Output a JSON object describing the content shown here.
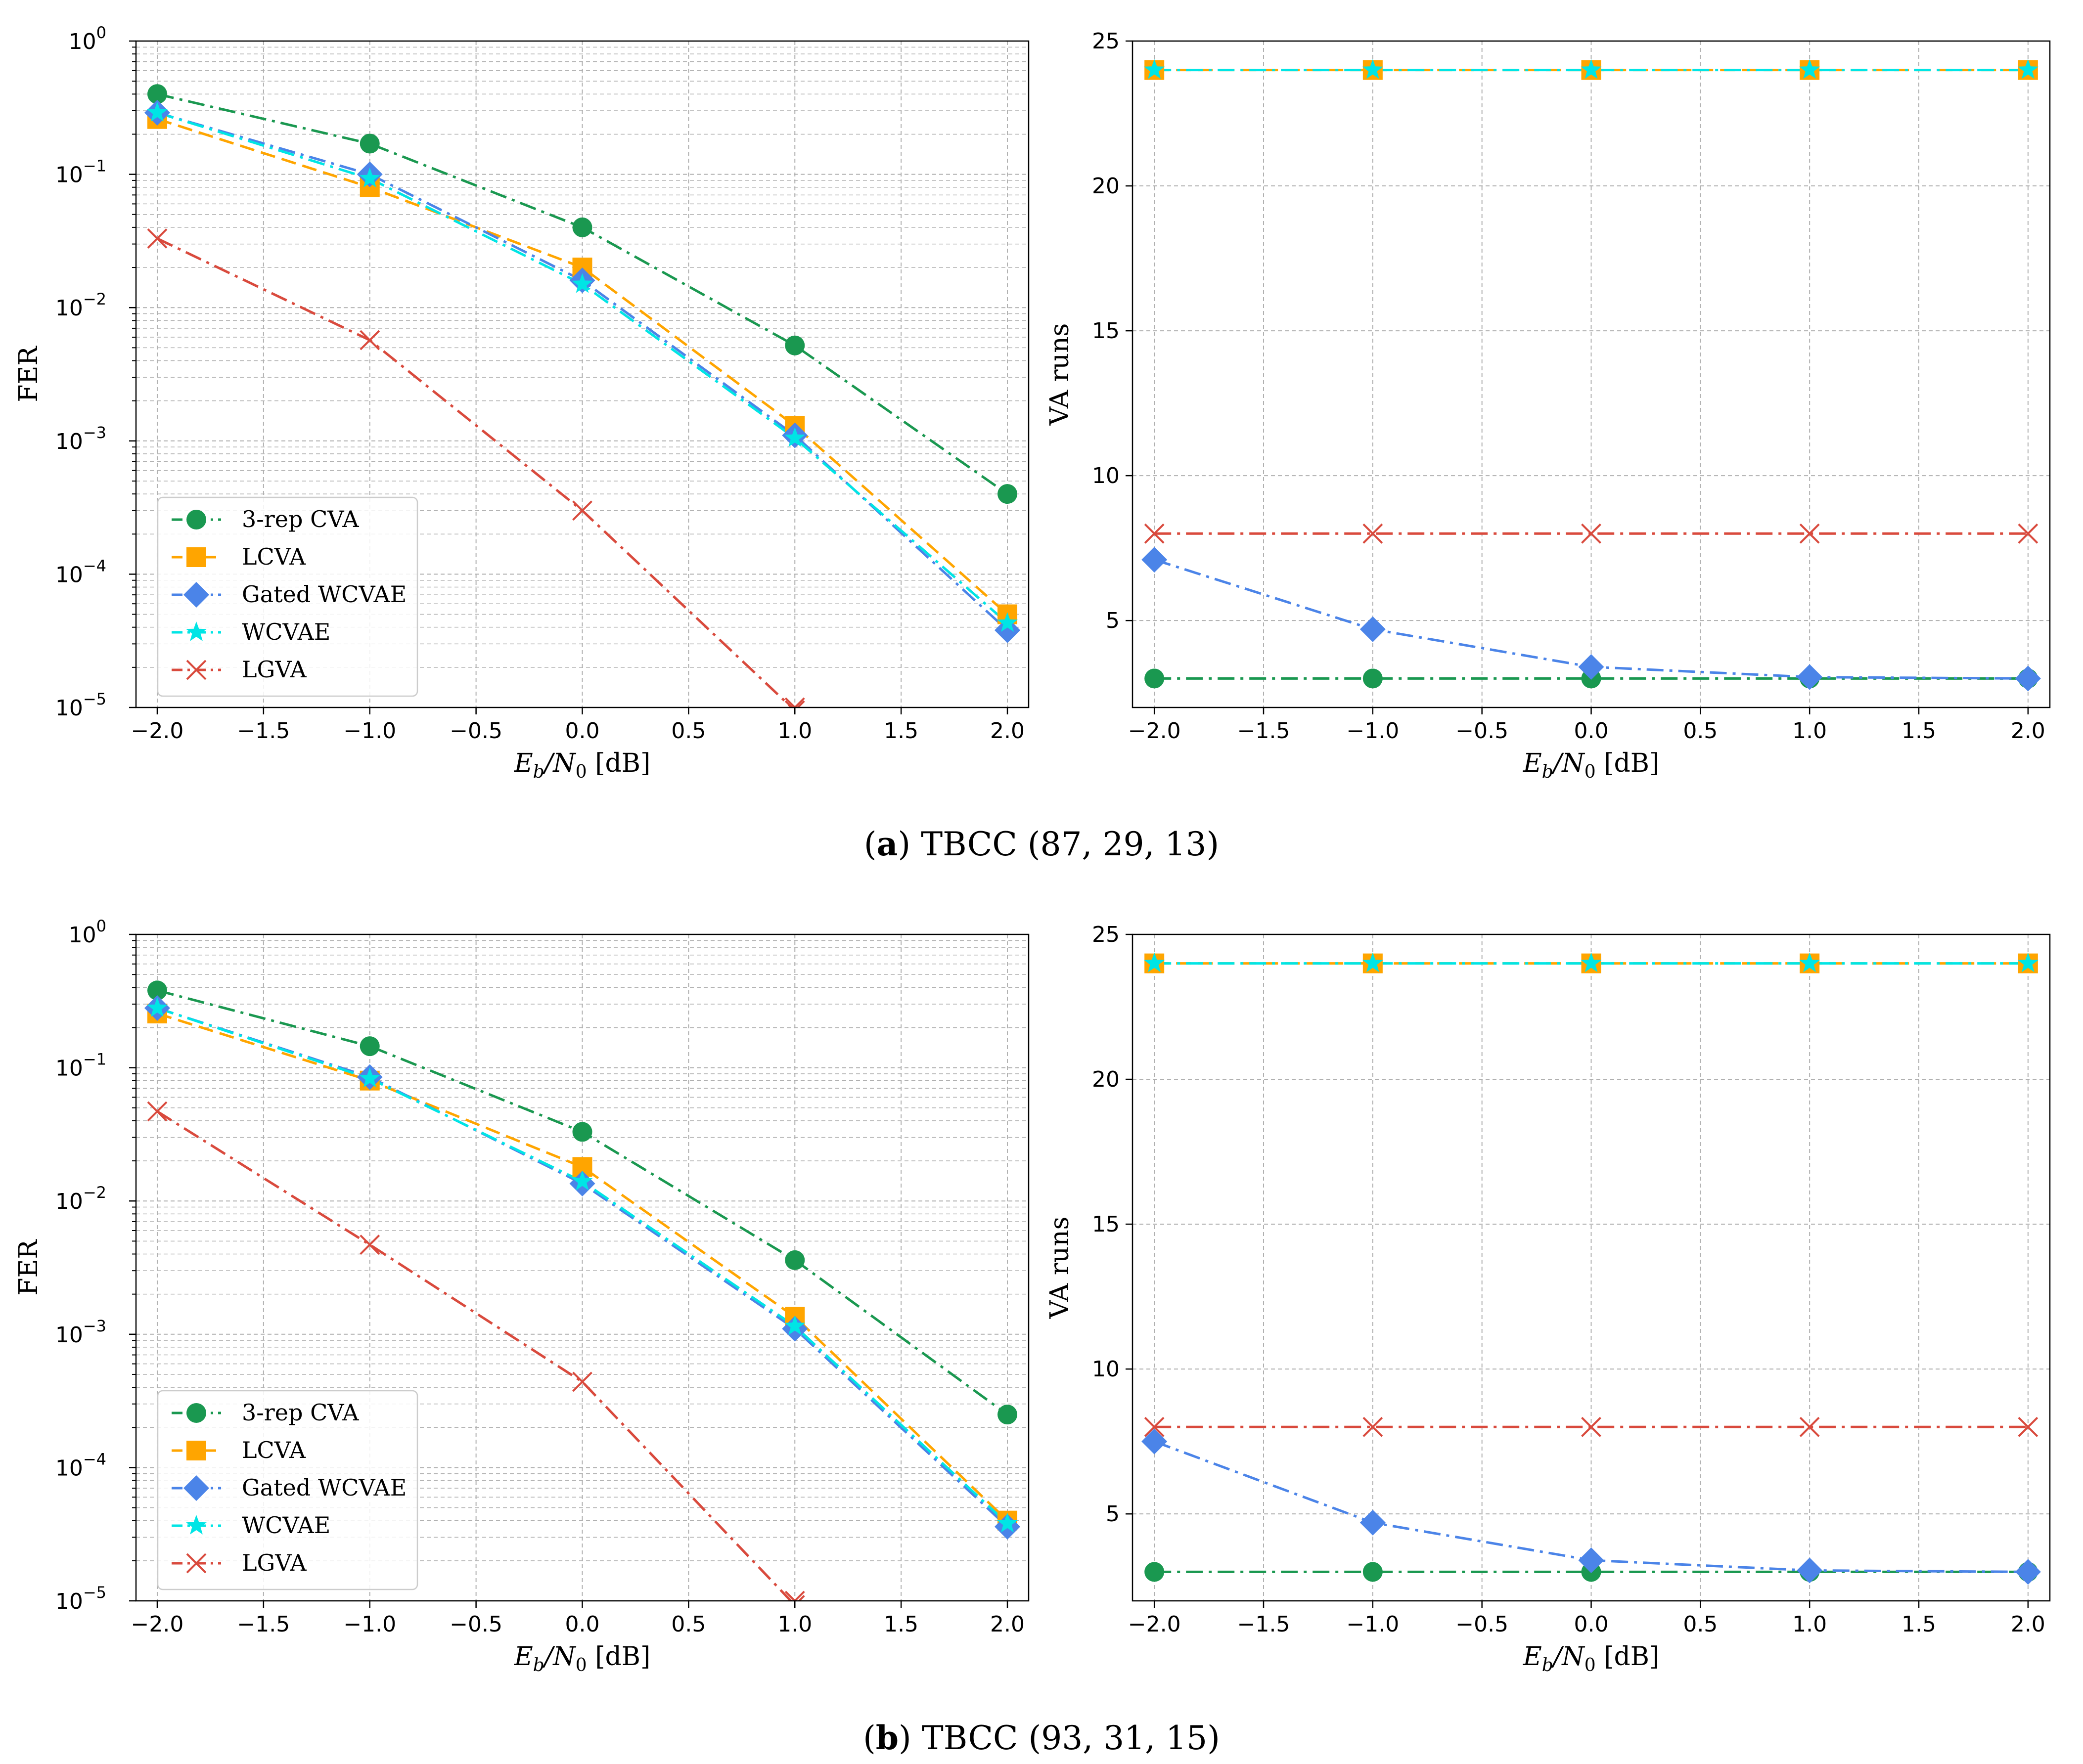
{
  "captions": [
    {
      "tag": "a",
      "text": "TBCC (87, 29, 13)"
    },
    {
      "tag": "b",
      "text": "TBCC (93, 31, 15)"
    }
  ],
  "series_styles": [
    {
      "name": "3-rep CVA",
      "color": "#1a9850",
      "marker": "circle"
    },
    {
      "name": "LCVA",
      "color": "#ffa500",
      "marker": "square"
    },
    {
      "name": "Gated WCVAE",
      "color": "#4b84e8",
      "marker": "diamond"
    },
    {
      "name": "WCVAE",
      "color": "#00e5e5",
      "marker": "star"
    },
    {
      "name": "LGVA",
      "color": "#d94a3d",
      "marker": "x"
    }
  ],
  "chart_data": [
    {
      "type": "line",
      "panel": "a-left",
      "xlabel": "E_b/N_0 [dB]",
      "ylabel": "FER",
      "yscale": "log",
      "ylim": [
        1e-05,
        1
      ],
      "xlim": [
        -2.1,
        2.1
      ],
      "x": [
        -2.0,
        -1.0,
        0.0,
        1.0,
        2.0
      ],
      "x_ticks": [
        "−2.0",
        "−1.5",
        "−1.0",
        "−0.5",
        "0.0",
        "0.5",
        "1.0",
        "1.5",
        "2.0"
      ],
      "y_ticks": [
        "10^0",
        "10^-1",
        "10^-2",
        "10^-3",
        "10^-4",
        "10^-5"
      ],
      "grid": true,
      "legend": "lower-left",
      "series": [
        {
          "name": "3-rep CVA",
          "values": [
            0.4,
            0.17,
            0.04,
            0.0052,
            0.0004
          ]
        },
        {
          "name": "LCVA",
          "values": [
            0.26,
            0.08,
            0.02,
            0.0013,
            5e-05
          ]
        },
        {
          "name": "Gated WCVAE",
          "values": [
            0.29,
            0.1,
            0.016,
            0.0011,
            3.8e-05
          ]
        },
        {
          "name": "WCVAE",
          "values": [
            0.29,
            0.093,
            0.015,
            0.00105,
            4.3e-05
          ]
        },
        {
          "name": "LGVA",
          "values": [
            0.033,
            0.0057,
            0.0003,
            9.5e-06,
            null
          ]
        }
      ]
    },
    {
      "type": "line",
      "panel": "a-right",
      "xlabel": "E_b/N_0 [dB]",
      "ylabel": "VA  runs",
      "yscale": "linear",
      "ylim": [
        2.0,
        25.0
      ],
      "xlim": [
        -2.1,
        2.1
      ],
      "x": [
        -2.0,
        -1.0,
        0.0,
        1.0,
        2.0
      ],
      "x_ticks": [
        "−2.0",
        "−1.5",
        "−1.0",
        "−0.5",
        "0.0",
        "0.5",
        "1.0",
        "1.5",
        "2.0"
      ],
      "y_ticks": [
        "5",
        "10",
        "15",
        "20",
        "25"
      ],
      "grid": true,
      "series": [
        {
          "name": "3-rep CVA",
          "values": [
            3,
            3,
            3,
            3,
            3
          ]
        },
        {
          "name": "LCVA",
          "values": [
            24,
            24,
            24,
            24,
            24
          ]
        },
        {
          "name": "Gated WCVAE",
          "values": [
            7.1,
            4.7,
            3.4,
            3.05,
            3.0
          ]
        },
        {
          "name": "WCVAE",
          "values": [
            24,
            24,
            24,
            24,
            24
          ]
        },
        {
          "name": "LGVA",
          "values": [
            8,
            8,
            8,
            8,
            8
          ]
        }
      ]
    },
    {
      "type": "line",
      "panel": "b-left",
      "xlabel": "E_b/N_0 [dB]",
      "ylabel": "FER",
      "yscale": "log",
      "ylim": [
        1e-05,
        1
      ],
      "xlim": [
        -2.1,
        2.1
      ],
      "x": [
        -2.0,
        -1.0,
        0.0,
        1.0,
        2.0
      ],
      "x_ticks": [
        "−2.0",
        "−1.5",
        "−1.0",
        "−0.5",
        "0.0",
        "0.5",
        "1.0",
        "1.5",
        "2.0"
      ],
      "y_ticks": [
        "10^0",
        "10^-1",
        "10^-2",
        "10^-3",
        "10^-4",
        "10^-5"
      ],
      "grid": true,
      "legend": "lower-left",
      "series": [
        {
          "name": "3-rep CVA",
          "values": [
            0.38,
            0.145,
            0.033,
            0.0036,
            0.00025
          ]
        },
        {
          "name": "LCVA",
          "values": [
            0.255,
            0.08,
            0.018,
            0.00135,
            4e-05
          ]
        },
        {
          "name": "Gated WCVAE",
          "values": [
            0.28,
            0.085,
            0.0135,
            0.0011,
            3.6e-05
          ]
        },
        {
          "name": "WCVAE",
          "values": [
            0.28,
            0.083,
            0.014,
            0.00115,
            3.8e-05
          ]
        },
        {
          "name": "LGVA",
          "values": [
            0.047,
            0.0047,
            0.00044,
            9.3e-06,
            null
          ]
        }
      ]
    },
    {
      "type": "line",
      "panel": "b-right",
      "xlabel": "E_b/N_0 [dB]",
      "ylabel": "VA  runs",
      "yscale": "linear",
      "ylim": [
        2.0,
        25.0
      ],
      "xlim": [
        -2.1,
        2.1
      ],
      "x": [
        -2.0,
        -1.0,
        0.0,
        1.0,
        2.0
      ],
      "x_ticks": [
        "−2.0",
        "−1.5",
        "−1.0",
        "−0.5",
        "0.0",
        "0.5",
        "1.0",
        "1.5",
        "2.0"
      ],
      "y_ticks": [
        "5",
        "10",
        "15",
        "20",
        "25"
      ],
      "grid": true,
      "series": [
        {
          "name": "3-rep CVA",
          "values": [
            3,
            3,
            3,
            3,
            3
          ]
        },
        {
          "name": "LCVA",
          "values": [
            24,
            24,
            24,
            24,
            24
          ]
        },
        {
          "name": "Gated WCVAE",
          "values": [
            7.5,
            4.7,
            3.4,
            3.05,
            3.0
          ]
        },
        {
          "name": "WCVAE",
          "values": [
            24,
            24,
            24,
            24,
            24
          ]
        },
        {
          "name": "LGVA",
          "values": [
            8,
            8,
            8,
            8,
            8
          ]
        }
      ]
    }
  ]
}
